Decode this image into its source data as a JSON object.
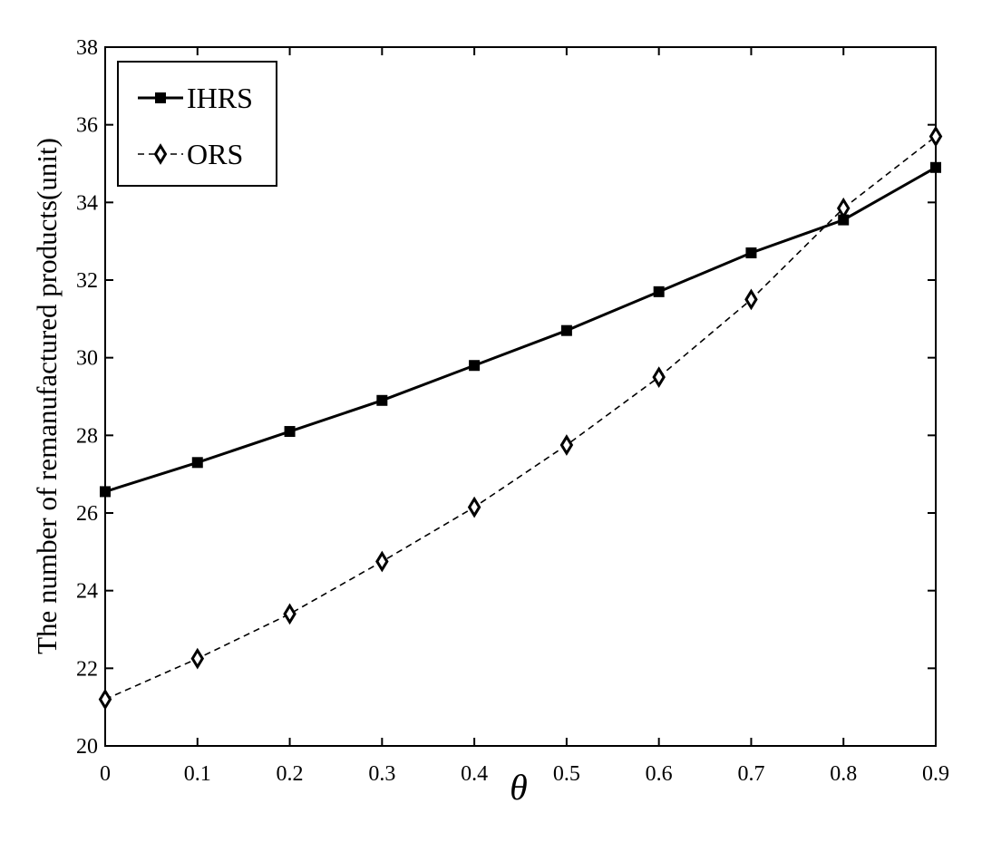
{
  "chart_data": {
    "type": "line",
    "x_label": "θ",
    "y_label": "The number of remanufactured products(unit)",
    "x": [
      0,
      0.1,
      0.2,
      0.3,
      0.4,
      0.5,
      0.6,
      0.7,
      0.8,
      0.9
    ],
    "series": [
      {
        "name": "IHRS",
        "color": "#000000",
        "values": [
          26.55,
          27.3,
          28.1,
          28.9,
          29.8,
          30.7,
          31.7,
          32.7,
          33.55,
          34.9
        ]
      },
      {
        "name": "ORS",
        "color": "#000000",
        "values": [
          21.2,
          22.25,
          23.4,
          24.75,
          26.15,
          27.75,
          29.5,
          31.5,
          33.85,
          35.7
        ]
      }
    ],
    "xlim": [
      0,
      0.9
    ],
    "xticks": [
      0,
      0.1,
      0.2,
      0.3,
      0.4,
      0.5,
      0.6,
      0.7,
      0.8,
      0.9
    ],
    "ylim": [
      20,
      38
    ],
    "yticks": [
      20,
      22,
      24,
      26,
      28,
      30,
      32,
      34,
      36,
      38
    ],
    "grid": false,
    "legend": "upper left"
  }
}
